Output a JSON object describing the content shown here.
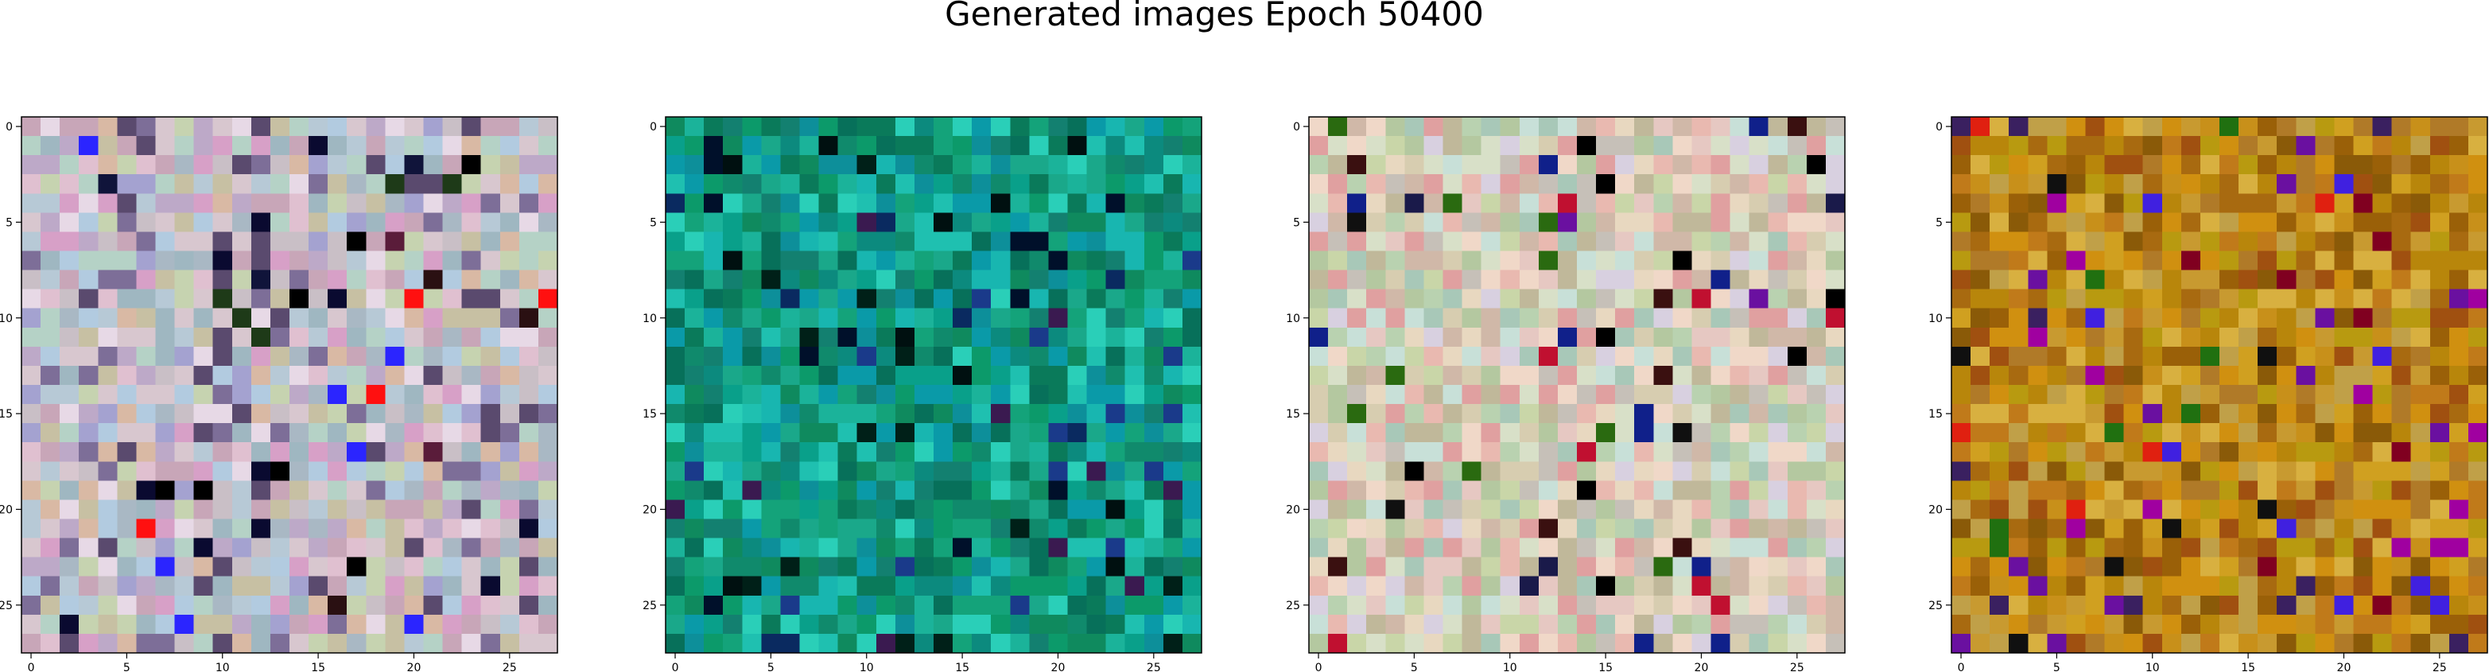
{
  "figure": {
    "title": "Generated images Epoch 50400"
  },
  "chart_data": [
    {
      "type": "heatmap",
      "grid_size": [
        28,
        28
      ],
      "xticks": [
        0,
        5,
        10,
        15,
        20,
        25
      ],
      "yticks": [
        0,
        5,
        10,
        15,
        20,
        25
      ],
      "xlim": [
        -0.5,
        27.5
      ],
      "ylim": [
        27.5,
        -0.5
      ],
      "grid": false,
      "palette": [
        "#c9bfc6",
        "#b7c9d6",
        "#d8c7cf",
        "#a9b8c4",
        "#c6d3b0",
        "#e0c0d0",
        "#bda9c8",
        "#9fb7c1",
        "#d9b9a4",
        "#c8a6b8",
        "#e7d9e6",
        "#b5d2c6",
        "#7d6e98",
        "#c7c0a3",
        "#a4a2d0",
        "#5a4a6e",
        "#d7a0c7",
        "#b2cbe0"
      ],
      "accents": [
        "#000000",
        "#10143a",
        "#2a1012",
        "#ff1010",
        "#1e3a18",
        "#2b25ff",
        "#5a1c3a",
        "#0a0a30"
      ],
      "accent_rate": 0.06,
      "seed": 11
    },
    {
      "type": "heatmap",
      "grid_size": [
        28,
        28
      ],
      "xticks": [
        0,
        5,
        10,
        15,
        20,
        25
      ],
      "yticks": [
        0,
        5,
        10,
        15,
        20,
        25
      ],
      "xlim": [
        -0.5,
        27.5
      ],
      "ylim": [
        27.5,
        -0.5
      ],
      "grid": false,
      "palette": [
        "#0c9a6a",
        "#0f8a5e",
        "#1aa88a",
        "#0a7a5a",
        "#1bb39a",
        "#09a08a",
        "#18b6b0",
        "#0d8f9a",
        "#14a37a",
        "#1fc0b0",
        "#07705a",
        "#0c8a7e",
        "#2acfb8",
        "#108a6c",
        "#0a9aa8",
        "#138070"
      ],
      "accents": [
        "#002018",
        "#00102a",
        "#0a2a60",
        "#3a1a50",
        "#001010",
        "#1a3a8a"
      ],
      "accent_rate": 0.07,
      "seed": 23
    },
    {
      "type": "heatmap",
      "grid_size": [
        28,
        28
      ],
      "xticks": [
        0,
        5,
        10,
        15,
        20,
        25
      ],
      "yticks": [
        0,
        5,
        10,
        15,
        20,
        25
      ],
      "xlim": [
        -0.5,
        27.5
      ],
      "ylim": [
        27.5,
        -0.5
      ],
      "grid": false,
      "palette": [
        "#d7cdb0",
        "#c9d6a8",
        "#e6c8c2",
        "#b9d2b0",
        "#d8e0c8",
        "#e9b9b0",
        "#c6c0b8",
        "#b4c8a0",
        "#e8d8c0",
        "#d0b8a8",
        "#c8e0d8",
        "#e0a0a0",
        "#a8c8b8",
        "#d8d0e0",
        "#c0b89a",
        "#f0d8c8"
      ],
      "accents": [
        "#000000",
        "#1a1a4a",
        "#3a1010",
        "#c01030",
        "#10208a",
        "#2a6a10",
        "#6a10a0",
        "#101010"
      ],
      "accent_rate": 0.07,
      "seed": 37
    },
    {
      "type": "heatmap",
      "grid_size": [
        28,
        28
      ],
      "xticks": [
        0,
        5,
        10,
        15,
        20,
        25
      ],
      "yticks": [
        0,
        5,
        10,
        15,
        20,
        25
      ],
      "xlim": [
        -0.5,
        27.5
      ],
      "ylim": [
        27.5,
        -0.5
      ],
      "grid": false,
      "palette": [
        "#b8860b",
        "#c8901a",
        "#a86a10",
        "#d0a020",
        "#9a6008",
        "#c07a1a",
        "#b89a10",
        "#d8b040",
        "#a05010",
        "#c89a30",
        "#8a5a08",
        "#d09010",
        "#b07a28",
        "#c0a048"
      ],
      "accents": [
        "#6a10a0",
        "#4020e0",
        "#a000a0",
        "#101010",
        "#800020",
        "#207010",
        "#3a2060",
        "#e02010"
      ],
      "accent_rate": 0.08,
      "seed": 53
    }
  ]
}
